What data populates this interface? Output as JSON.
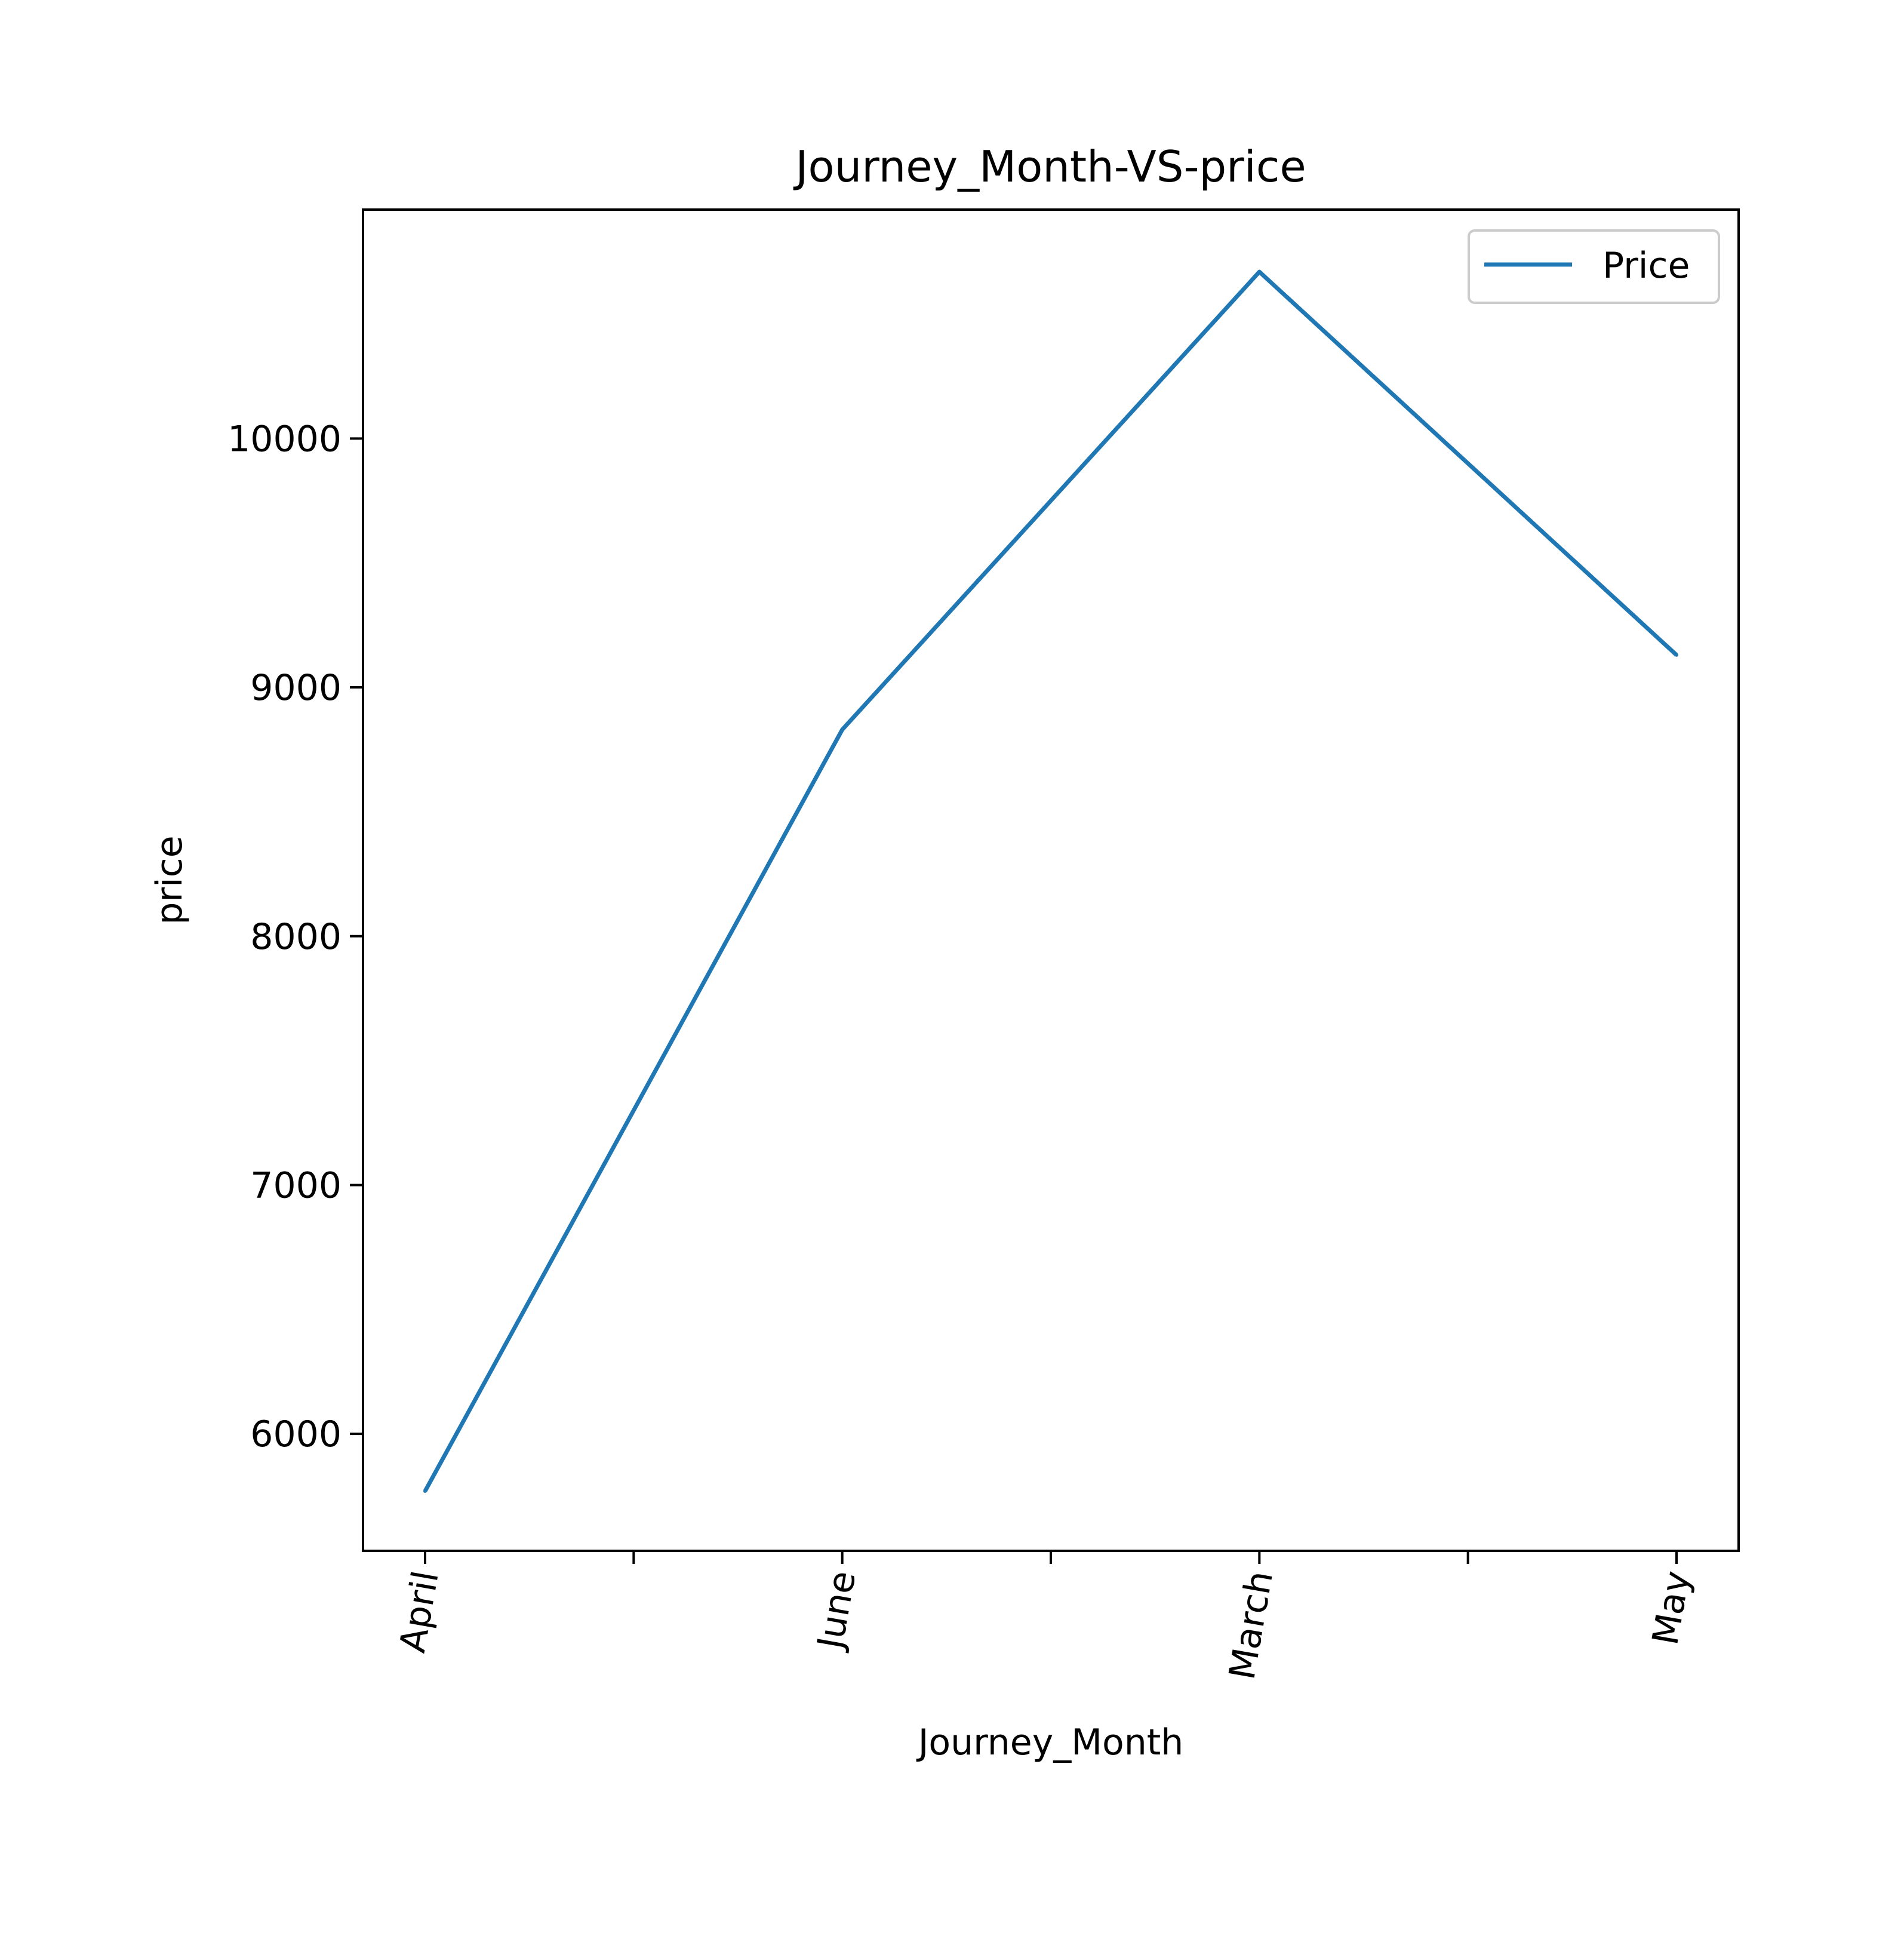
{
  "chart_data": {
    "type": "line",
    "title": "Journey_Month-VS-price",
    "xlabel": "Journey_Month",
    "ylabel": "price",
    "categories": [
      "April",
      "June",
      "March",
      "May"
    ],
    "series": [
      {
        "name": "Price",
        "color": "#1f77b4",
        "values": [
          5770,
          8830,
          10670,
          9130
        ]
      }
    ],
    "ylim": [
      5530,
      10920
    ],
    "yticks": [
      6000,
      7000,
      8000,
      9000,
      10000
    ],
    "xlabel_rotation_deg": 80,
    "minor_xticks": true,
    "grid": false,
    "legend_position": "upper right"
  }
}
